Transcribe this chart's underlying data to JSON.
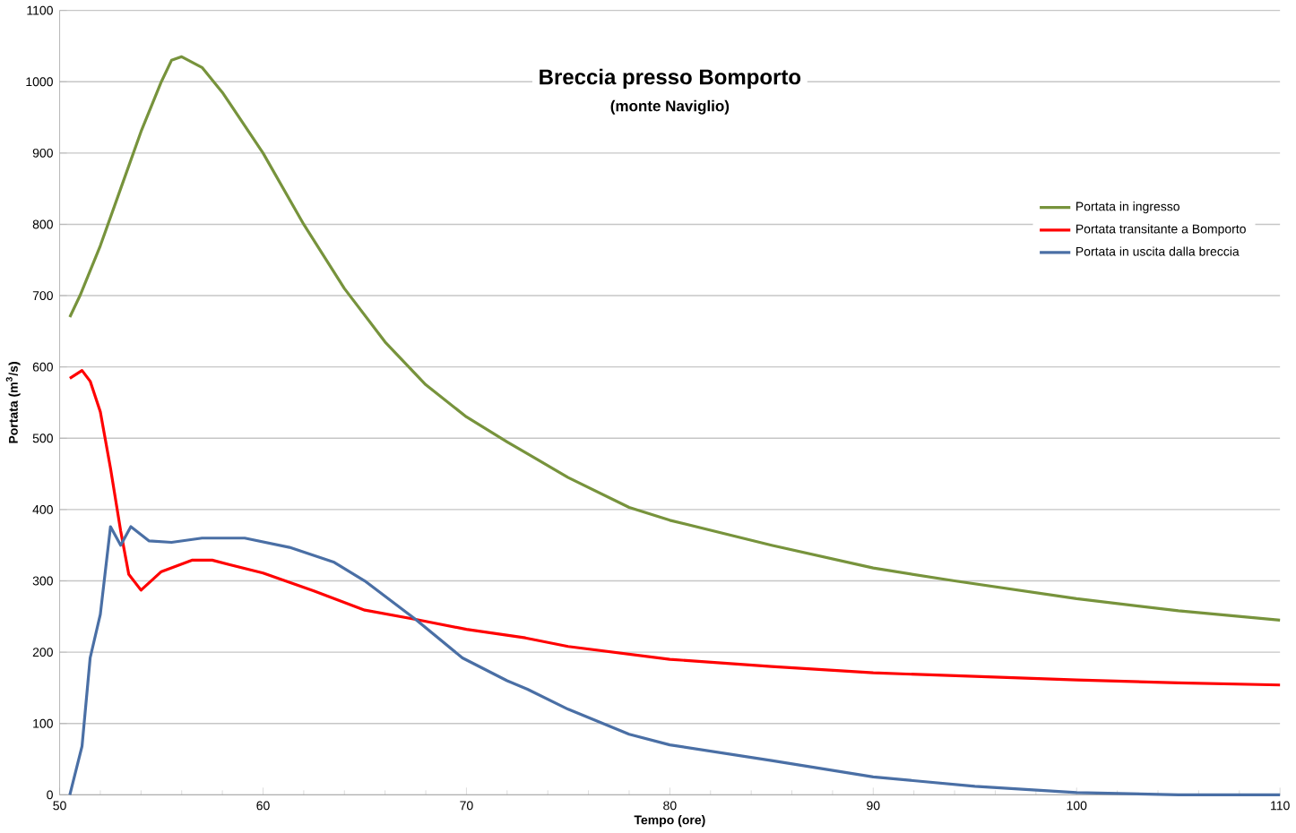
{
  "chart_data": {
    "type": "line",
    "title": "Breccia presso Bomporto",
    "subtitle": "(monte Naviglio)",
    "xlabel": "Tempo (ore)",
    "ylabel": "Portata (m$^{3}$/s)",
    "xlim": [
      50,
      110
    ],
    "xticks": [
      50,
      60,
      70,
      80,
      90,
      100,
      110
    ],
    "ylim": [
      0,
      1100
    ],
    "yticks": [
      0,
      100,
      200,
      300,
      400,
      500,
      600,
      700,
      800,
      900,
      1000,
      1100
    ],
    "grid": "y",
    "legend": "right",
    "marker": "none",
    "line_style": "solid",
    "series": [
      {
        "name": "Portata in ingresso",
        "color": "#77933c",
        "x": [
          50.5,
          51,
          52,
          53,
          54,
          55,
          55.5,
          56,
          57,
          58,
          60,
          62,
          64,
          66,
          68,
          70,
          72,
          75,
          78,
          80,
          85,
          90,
          94,
          100,
          105,
          110
        ],
        "values": [
          670,
          700,
          770,
          850,
          930,
          1000,
          1030,
          1035,
          1020,
          985,
          900,
          800,
          710,
          635,
          575,
          530,
          495,
          445,
          403,
          385,
          350,
          318,
          300,
          275,
          258,
          245
        ]
      },
      {
        "name": "Portata transitante a Bomporto",
        "color": "#ff0000",
        "x": [
          50.5,
          51.1,
          51.5,
          52,
          52.5,
          53,
          53.4,
          54,
          55,
          56.5,
          57.5,
          60,
          62.5,
          65,
          67.5,
          70,
          72.9,
          75,
          80,
          85,
          90,
          95,
          100,
          105,
          110
        ],
        "values": [
          584,
          595,
          580,
          537,
          458,
          370,
          309,
          287,
          313,
          329,
          329,
          311,
          286,
          259,
          246,
          232,
          220,
          208,
          190,
          180,
          171,
          166,
          161,
          157,
          154
        ]
      },
      {
        "name": "Portata in uscita dalla breccia",
        "color": "#4a6fa5",
        "x": [
          50.5,
          51.1,
          51.5,
          52,
          52.5,
          53,
          53.5,
          54.4,
          55.5,
          57,
          59.1,
          61.3,
          63.5,
          65,
          67.5,
          69.8,
          72,
          73,
          75,
          78,
          80,
          85,
          90,
          95,
          100,
          105,
          110
        ],
        "values": [
          0,
          68,
          192,
          253,
          376,
          350,
          376,
          356,
          354,
          360,
          360,
          347,
          326,
          300,
          246,
          192,
          160,
          148,
          120,
          85,
          70,
          48,
          25,
          12,
          3,
          0,
          0
        ]
      }
    ]
  }
}
